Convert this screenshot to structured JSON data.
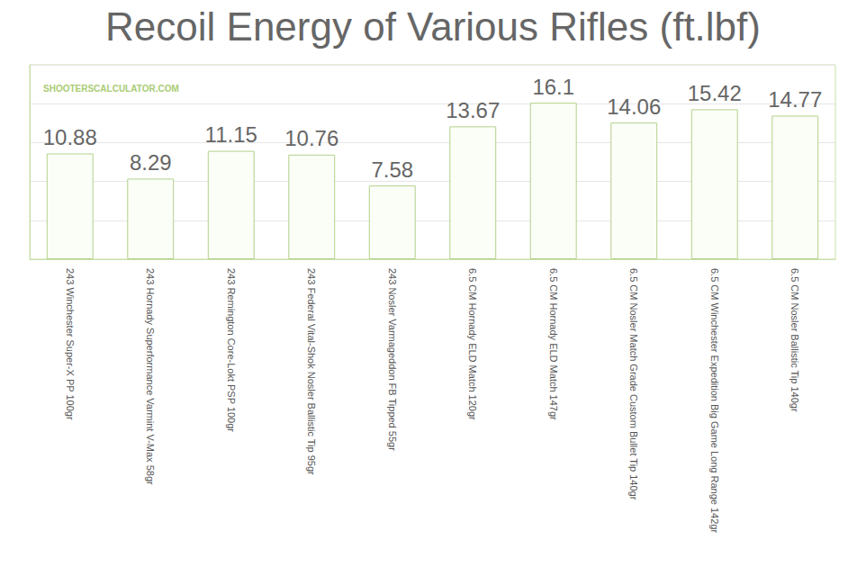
{
  "chart_data": {
    "type": "bar",
    "title": "Recoil Energy of Various Rifles (ft.lbf)",
    "annotations": [
      "SHOOTERSCALCULATOR.COM"
    ],
    "categories": [
      "243 Winchester Super-X PP 100gr",
      "243 Hornady Superformance Varmint V-Max 58gr",
      "243 Remington Core-Lokt PSP 100gr",
      "243 Federal Vital-Shok Nosler Ballistic Tip 95gr",
      "243 Nosler Varmageddon FB Tipped 55gr",
      "6.5 CM Hornady ELD Match 120gr",
      "6.5 CM Hornady ELD Match 147gr",
      "6.5 CM Nosler Match Grade Custom Bullet Tip 140gr",
      "6.5 CM Winchester Expedition Big Game Long Range 142gr",
      "6.5 CM Nosler Ballistic Tip 140gr"
    ],
    "values": [
      10.88,
      8.29,
      11.15,
      10.76,
      7.58,
      13.67,
      16.1,
      14.06,
      15.42,
      14.77
    ],
    "color": "#b3d18a",
    "ylim": [
      0,
      20
    ],
    "yticks": [
      0,
      4,
      8,
      12,
      16,
      20
    ],
    "grid": true,
    "data_labels": true,
    "tick_labels": "x"
  }
}
